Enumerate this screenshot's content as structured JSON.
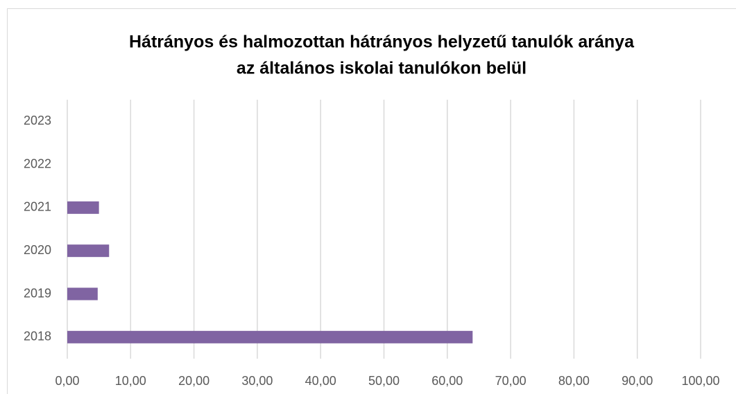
{
  "chart_data": {
    "type": "bar",
    "orientation": "horizontal",
    "title": [
      "Hátrányos és halmozottan hátrányos helyzetű  tanulók aránya",
      "az általános iskolai tanulókon belül"
    ],
    "categories": [
      "2018",
      "2019",
      "2020",
      "2021",
      "2022",
      "2023"
    ],
    "values": [
      64.0,
      4.8,
      6.6,
      5.0,
      null,
      null
    ],
    "color": "#8064a2",
    "xlim": [
      0,
      100
    ],
    "xticks": [
      {
        "value": 0,
        "label": "0,00"
      },
      {
        "value": 10,
        "label": "10,00"
      },
      {
        "value": 20,
        "label": "20,00"
      },
      {
        "value": 30,
        "label": "30,00"
      },
      {
        "value": 40,
        "label": "40,00"
      },
      {
        "value": 50,
        "label": "50,00"
      },
      {
        "value": 60,
        "label": "60,00"
      },
      {
        "value": 70,
        "label": "70,00"
      },
      {
        "value": 80,
        "label": "80,00"
      },
      {
        "value": 90,
        "label": "90,00"
      },
      {
        "value": 100,
        "label": "100,00"
      }
    ],
    "grid": true
  }
}
